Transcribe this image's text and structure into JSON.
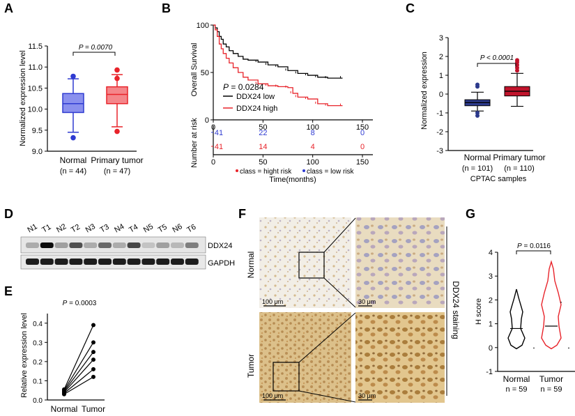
{
  "panels": {
    "A": {
      "letter": "A",
      "p_value": "P = 0.0070",
      "ylabel": "Normalized expression level",
      "yticks": [
        "9.0",
        "9.5",
        "10.0",
        "10.5",
        "11.0",
        "11.5"
      ],
      "groups": [
        {
          "name": "Normal",
          "n": "(n = 44)",
          "color": "#2f3bd1"
        },
        {
          "name": "Primary tumor",
          "n": "(n = 47)",
          "color": "#e8232a"
        }
      ]
    },
    "B": {
      "letter": "B",
      "ylabel": "Overall Survival",
      "yticks": [
        "0",
        "50",
        "100"
      ],
      "xticks": [
        "0",
        "50",
        "100",
        "150"
      ],
      "p_value": "P = 0.0284",
      "legend": [
        {
          "label": "DDX24 low",
          "color": "#000000"
        },
        {
          "label": "DDX24 high",
          "color": "#e8232a"
        }
      ],
      "risk_label": "Number at risk",
      "risk_high": [
        "41",
        "14",
        "4",
        "0"
      ],
      "risk_low": [
        "41",
        "22",
        "8",
        "0"
      ],
      "risk_legend_high": "class = hight risk",
      "risk_legend_low": "class = low risk",
      "xlabel": "Time(months)"
    },
    "C": {
      "letter": "C",
      "p_value": "P < 0.0001",
      "ylabel": "Normalized expression",
      "yticks": [
        "-3",
        "-2",
        "-1",
        "0",
        "1",
        "2",
        "3"
      ],
      "groups": [
        {
          "name": "Normal",
          "n": "(n = 101)",
          "color": "#2c3a8c"
        },
        {
          "name": "Primary tumor",
          "n": "(n = 110)",
          "color": "#c0132b"
        }
      ],
      "xlabel": "CPTAC samples"
    },
    "D": {
      "letter": "D",
      "lanes": [
        "N1",
        "T1",
        "N2",
        "T2",
        "N3",
        "T3",
        "N4",
        "T4",
        "N5",
        "T5",
        "N6",
        "T6"
      ],
      "blots": [
        "DDX24",
        "GAPDH"
      ]
    },
    "E": {
      "letter": "E",
      "p_value": "P = 0.0003",
      "ylabel": "Relative expression level",
      "yticks": [
        "0.0",
        "0.1",
        "0.2",
        "0.3",
        "0.4"
      ],
      "groups": [
        "Normal",
        "Tumor"
      ]
    },
    "F": {
      "letter": "F",
      "rows": [
        "Normal",
        "Tumor"
      ],
      "scale_low": "100 μm",
      "scale_high": "30 μm",
      "side_label": "DDX24 staining"
    },
    "G": {
      "letter": "G",
      "p_value": "P = 0.0116",
      "ylabel": "H score",
      "yticks": [
        "-1",
        "0",
        "1",
        "2",
        "3",
        "4"
      ],
      "groups": [
        {
          "name": "Normal",
          "n": "n = 59",
          "color": "#000000"
        },
        {
          "name": "Tumor",
          "n": "n = 59",
          "color": "#e8232a"
        }
      ]
    }
  },
  "chart_data": [
    {
      "type": "box",
      "title": "A",
      "categories": [
        "Normal",
        "Primary tumor"
      ],
      "ylabel": "Normalized expression level",
      "ylim": [
        9.0,
        11.5
      ],
      "series": [
        {
          "name": "Normal",
          "min": 9.45,
          "q1": 9.92,
          "median": 10.13,
          "q3": 10.37,
          "max": 10.72,
          "outliers": [
            10.78,
            9.32
          ]
        },
        {
          "name": "Primary tumor",
          "min": 9.58,
          "q1": 10.13,
          "median": 10.35,
          "q3": 10.53,
          "max": 10.82,
          "outliers": [
            10.93,
            10.73,
            9.47
          ]
        }
      ]
    },
    {
      "type": "line",
      "title": "B",
      "xlabel": "Time(months)",
      "ylabel": "Overall Survival",
      "xlim": [
        0,
        150
      ],
      "ylim": [
        0,
        100
      ],
      "series": [
        {
          "name": "DDX24 low",
          "x": [
            0,
            2,
            4,
            6,
            8,
            10,
            13,
            16,
            20,
            25,
            30,
            35,
            45,
            55,
            65,
            75,
            85,
            95,
            105,
            115,
            130
          ],
          "y": [
            100,
            97,
            93,
            88,
            85,
            80,
            77,
            73,
            70,
            67,
            64,
            63,
            61,
            58,
            56,
            52,
            49,
            47,
            45,
            44,
            44
          ]
        },
        {
          "name": "DDX24 high",
          "x": [
            0,
            2,
            4,
            6,
            8,
            10,
            13,
            16,
            20,
            25,
            30,
            35,
            45,
            55,
            65,
            75,
            80,
            85,
            95,
            105,
            115,
            130
          ],
          "y": [
            100,
            95,
            88,
            80,
            75,
            70,
            65,
            60,
            55,
            50,
            45,
            42,
            38,
            36,
            35,
            34,
            28,
            24,
            22,
            17,
            15,
            15
          ]
        }
      ]
    },
    {
      "type": "box",
      "title": "C",
      "categories": [
        "Normal",
        "Primary tumor"
      ],
      "ylabel": "Normalized expression",
      "ylim": [
        -3,
        3
      ],
      "series": [
        {
          "name": "Normal",
          "min": -0.9,
          "q1": -0.62,
          "median": -0.45,
          "q3": -0.3,
          "max": 0.1,
          "outliers": [
            0.5,
            0.4,
            -1.15,
            -1.0
          ]
        },
        {
          "name": "Primary tumor",
          "min": -0.65,
          "q1": -0.1,
          "median": 0.15,
          "q3": 0.4,
          "max": 1.1,
          "outliers": [
            1.25,
            1.4,
            1.55,
            1.7,
            1.8
          ]
        }
      ]
    },
    {
      "type": "paired",
      "title": "E",
      "categories": [
        "Normal",
        "Tumor"
      ],
      "ylabel": "Relative expression level",
      "ylim": [
        0,
        0.4
      ],
      "pairs": [
        [
          0.055,
          0.39
        ],
        [
          0.05,
          0.3
        ],
        [
          0.045,
          0.25
        ],
        [
          0.04,
          0.21
        ],
        [
          0.035,
          0.16
        ],
        [
          0.03,
          0.12
        ]
      ]
    },
    {
      "type": "violin",
      "title": "G",
      "categories": [
        "Normal",
        "Tumor"
      ],
      "ylabel": "H score",
      "ylim": [
        -1,
        4
      ],
      "series": [
        {
          "name": "Normal",
          "min": -0.05,
          "max": 2.45,
          "median": 0.8
        },
        {
          "name": "Tumor",
          "min": -0.05,
          "max": 3.6,
          "median": 0.9
        }
      ]
    }
  ]
}
